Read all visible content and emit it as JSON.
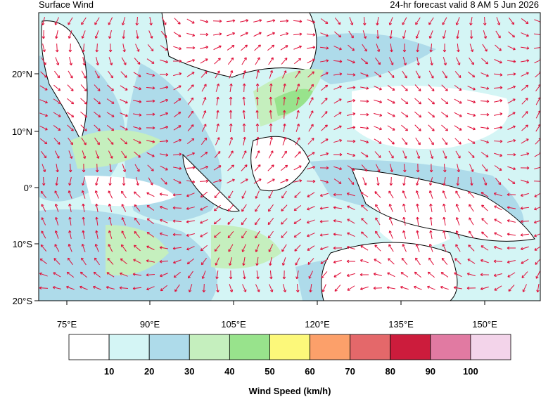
{
  "header": {
    "title": "Surface Wind",
    "valid": "24-hr forecast valid 8 AM 5 Jun 2026"
  },
  "map": {
    "lat_labels": [
      "20°N",
      "10°N",
      "0°",
      "10°S",
      "20°S"
    ],
    "lon_labels": [
      "75°E",
      "90°E",
      "105°E",
      "120°E",
      "135°E",
      "150°E"
    ]
  },
  "colorbar": {
    "title": "Wind Speed (km/h)",
    "colors": [
      "#ffffff",
      "#d4f5f5",
      "#aedbea",
      "#c5efbe",
      "#98e38c",
      "#fcf87a",
      "#fca06a",
      "#e4686a",
      "#cc1c3c",
      "#e17aa2",
      "#f3d4ea"
    ],
    "labels": [
      10,
      20,
      30,
      40,
      50,
      60,
      70,
      80,
      90,
      100
    ]
  }
}
